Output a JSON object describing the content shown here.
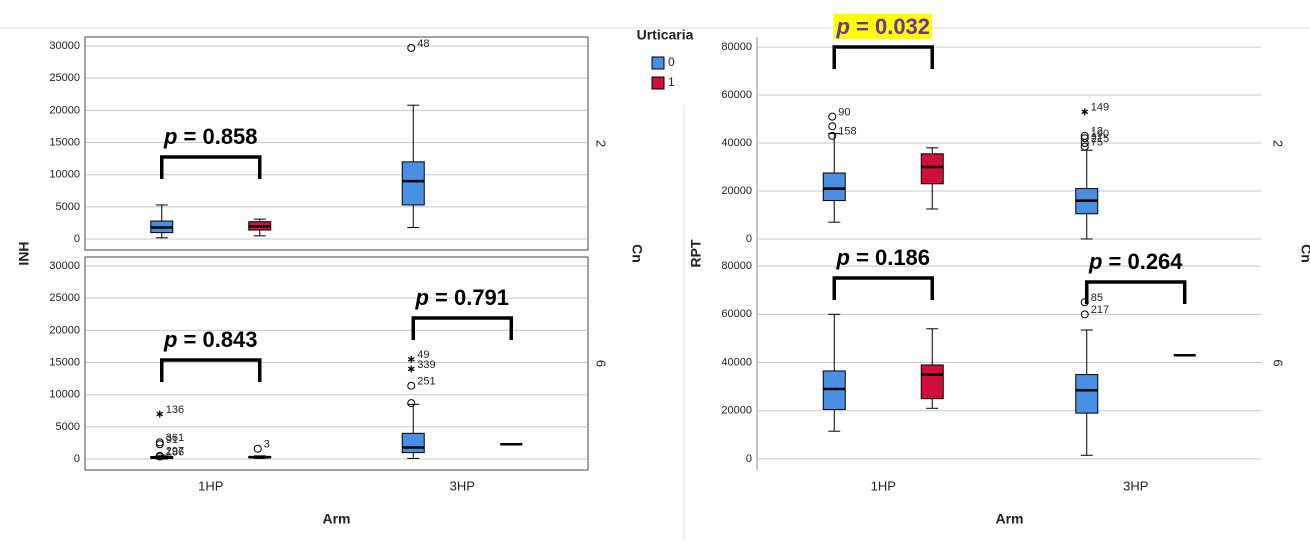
{
  "chart_data": [
    {
      "type": "box",
      "y_label": "INH",
      "x_label": "Arm",
      "facet_title": "Cn",
      "legend_title": "Urticaria",
      "categories": [
        "1HP",
        "3HP"
      ],
      "series": [
        {
          "name": "0",
          "color": "#4a90e2"
        },
        {
          "name": "1",
          "color": "#d0103a"
        }
      ],
      "ylim": [
        -1700,
        31400
      ],
      "yticks": [
        0,
        5000,
        10000,
        15000,
        20000,
        25000,
        30000
      ],
      "grid": true,
      "panel_border": true,
      "facets": [
        {
          "label": "2",
          "boxes": [
            [
              {
                "min": 200,
                "q1": 1000,
                "median": 1800,
                "q3": 2800,
                "max": 5300,
                "outliers": []
              },
              {
                "min": 500,
                "q1": 1400,
                "median": 2000,
                "q3": 2700,
                "max": 3100,
                "outliers": []
              }
            ],
            [
              {
                "min": 1800,
                "q1": 5300,
                "median": 9000,
                "q3": 12000,
                "max": 20800,
                "outliers": [
                  {
                    "value": 29700,
                    "label": "48",
                    "marker": "circle"
                  }
                ]
              },
              null
            ]
          ],
          "annotations": [
            {
              "text": "p = 0.858"
            }
          ]
        },
        {
          "label": "6",
          "boxes": [
            [
              {
                "min": 0,
                "q1": 100,
                "median": 200,
                "q3": 400,
                "max": 600,
                "outliers": [
                  {
                    "value": 7000,
                    "label": "136",
                    "marker": "star"
                  },
                  {
                    "value": 2600,
                    "label": "361",
                    "marker": "circle"
                  },
                  {
                    "value": 2300,
                    "label": "91",
                    "marker": "circle"
                  },
                  {
                    "value": 500,
                    "label": "297",
                    "marker": "circle"
                  },
                  {
                    "value": 400,
                    "label": "186",
                    "marker": "circle"
                  }
                ]
              },
              {
                "min": 100,
                "q1": 200,
                "median": 300,
                "q3": 400,
                "max": 500,
                "outliers": [
                  {
                    "value": 1600,
                    "label": "3",
                    "marker": "circle"
                  }
                ]
              }
            ],
            [
              {
                "min": 100,
                "q1": 1000,
                "median": 1800,
                "q3": 4000,
                "max": 8500,
                "outliers": [
                  {
                    "value": 15500,
                    "label": "49",
                    "marker": "star"
                  },
                  {
                    "value": 14000,
                    "label": "339",
                    "marker": "star"
                  },
                  {
                    "value": 11400,
                    "label": "251",
                    "marker": "circle"
                  },
                  {
                    "value": 8700,
                    "marker": "circle"
                  }
                ]
              },
              {
                "min": 2300,
                "q1": 2300,
                "median": 2300,
                "q3": 2300,
                "max": 2300,
                "outliers": []
              }
            ]
          ],
          "annotations": [
            {
              "text": "p = 0.843"
            },
            {
              "text": "p = 0.791"
            }
          ]
        }
      ]
    },
    {
      "type": "box",
      "y_label": "RPT",
      "x_label": "Arm",
      "facet_title": "Cn",
      "categories": [
        "1HP",
        "3HP"
      ],
      "series": [
        {
          "color": "#4a90e2"
        },
        {
          "color": "#d0103a"
        }
      ],
      "ylim": [
        -4600,
        84200
      ],
      "yticks": [
        0,
        20000,
        40000,
        60000,
        80000
      ],
      "grid": true,
      "panel_border": false,
      "facets": [
        {
          "label": "2",
          "boxes": [
            [
              {
                "min": 7000,
                "q1": 16000,
                "median": 21000,
                "q3": 27500,
                "max": 44000,
                "outliers": [
                  {
                    "value": 51000,
                    "label": "90",
                    "marker": "circle"
                  },
                  {
                    "value": 47000,
                    "marker": "circle"
                  },
                  {
                    "value": 43000,
                    "label": "158",
                    "marker": "circle"
                  }
                ]
              },
              {
                "min": 12500,
                "q1": 23000,
                "median": 30000,
                "q3": 35500,
                "max": 38000,
                "outliers": []
              }
            ],
            [
              {
                "min": 0,
                "q1": 10500,
                "median": 16000,
                "q3": 21000,
                "max": 37000,
                "outliers": [
                  {
                    "value": 53000,
                    "label": "149",
                    "marker": "star"
                  },
                  {
                    "value": 43000,
                    "label": "12",
                    "marker": "circle"
                  },
                  {
                    "value": 42000,
                    "label": "190",
                    "marker": "circle"
                  },
                  {
                    "value": 40000,
                    "label": "215",
                    "marker": "circle"
                  },
                  {
                    "value": 38500,
                    "label": "75",
                    "marker": "circle"
                  }
                ]
              },
              null
            ]
          ],
          "annotations": [
            {
              "text": "p = 0.032",
              "highlight": "#ffff00",
              "color": "#7030a0"
            }
          ]
        },
        {
          "label": "6",
          "boxes": [
            [
              {
                "min": 11500,
                "q1": 20500,
                "median": 29000,
                "q3": 36500,
                "max": 60000,
                "outliers": []
              },
              {
                "min": 21000,
                "q1": 25000,
                "median": 35000,
                "q3": 39000,
                "max": 54000,
                "outliers": []
              }
            ],
            [
              {
                "min": 1500,
                "q1": 19000,
                "median": 28500,
                "q3": 35000,
                "max": 53500,
                "outliers": [
                  {
                    "value": 65000,
                    "label": "85",
                    "marker": "circle"
                  },
                  {
                    "value": 60000,
                    "label": "217",
                    "marker": "circle"
                  }
                ]
              },
              {
                "min": 43000,
                "q1": 43000,
                "median": 43000,
                "q3": 43000,
                "max": 43000,
                "outliers": []
              }
            ]
          ],
          "annotations": [
            {
              "text": "p = 0.186"
            },
            {
              "text": "p = 0.264"
            }
          ]
        }
      ]
    }
  ]
}
